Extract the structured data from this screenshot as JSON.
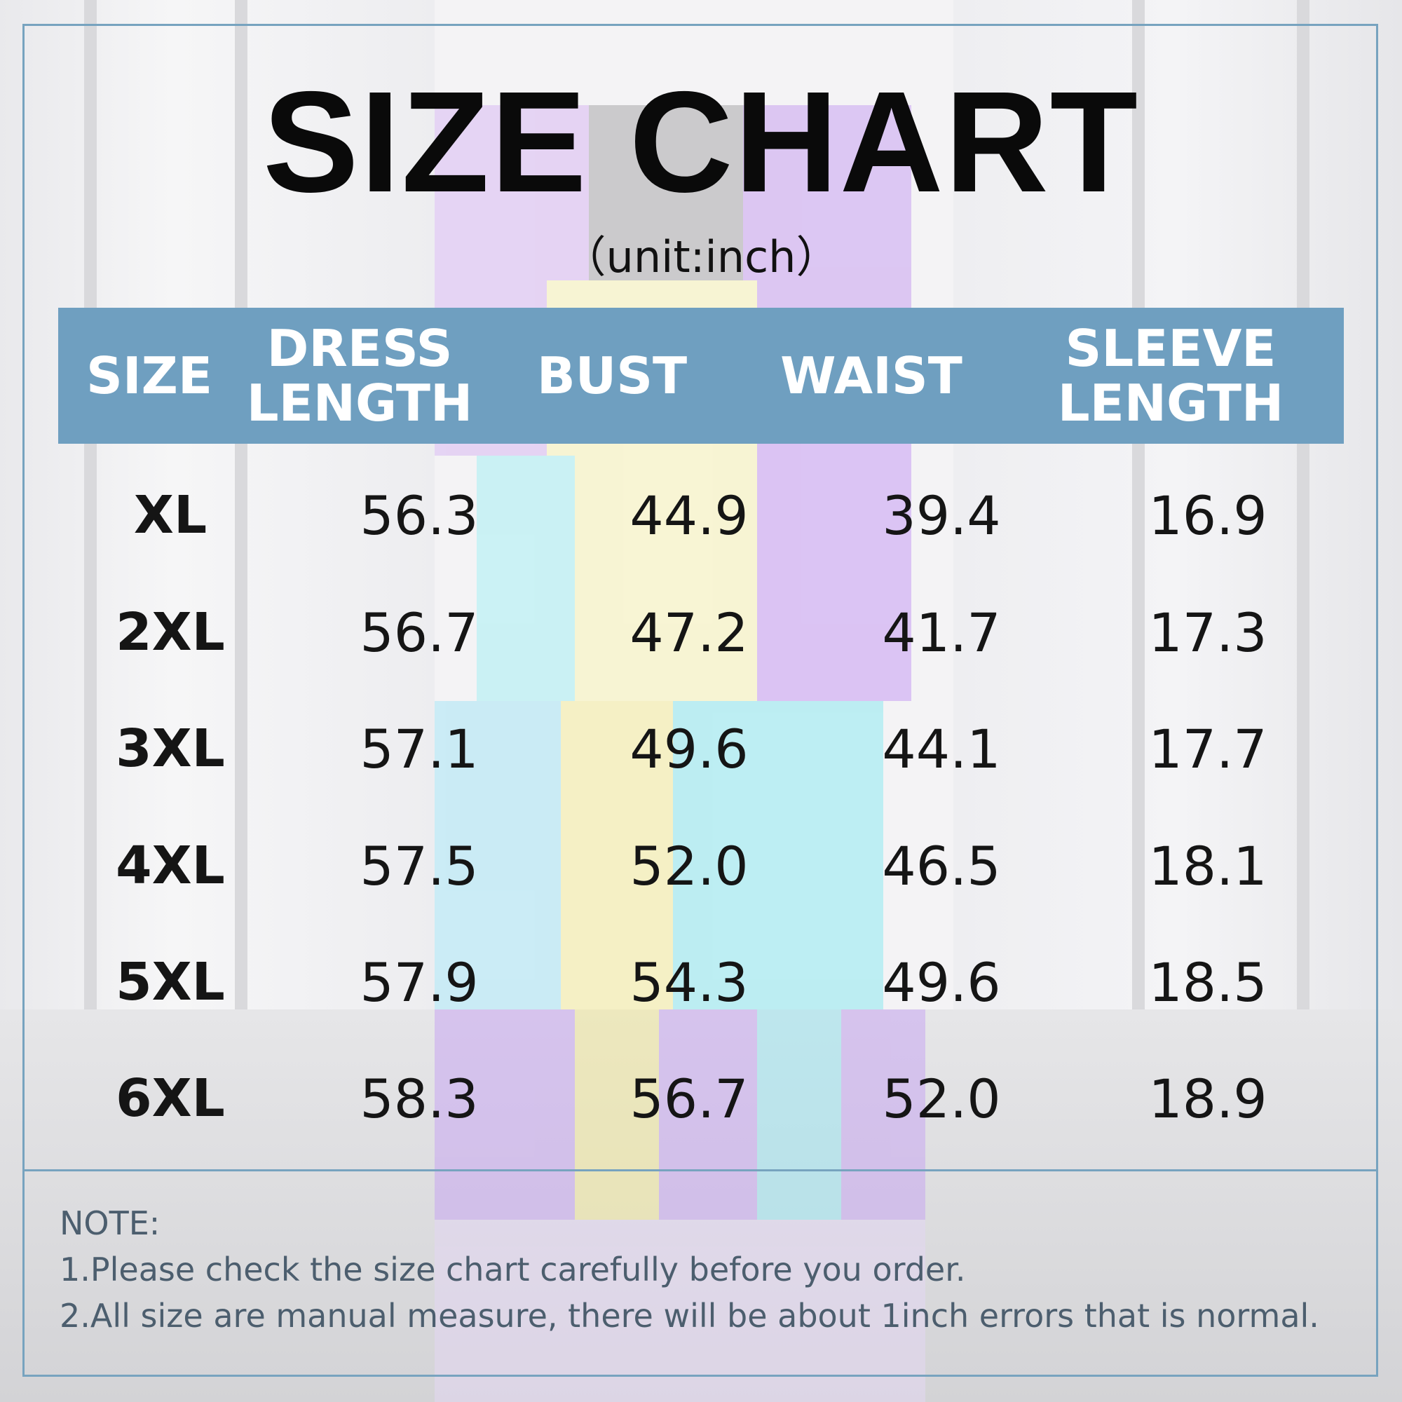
{
  "title": "SIZE CHART",
  "unit": "（unit:inch）",
  "columns": [
    "SIZE",
    "DRESS\nLENGTH",
    "BUST",
    "WAIST",
    "SLEEVE\nLENGTH"
  ],
  "rows": [
    [
      "XL",
      "56.3",
      "44.9",
      "39.4",
      "16.9"
    ],
    [
      "2XL",
      "56.7",
      "47.2",
      "41.7",
      "17.3"
    ],
    [
      "3XL",
      "57.1",
      "49.6",
      "44.1",
      "17.7"
    ],
    [
      "4XL",
      "57.5",
      "52.0",
      "46.5",
      "18.1"
    ],
    [
      "5XL",
      "57.9",
      "54.3",
      "49.6",
      "18.5"
    ],
    [
      "6XL",
      "58.3",
      "56.7",
      "52.0",
      "18.9"
    ]
  ],
  "notes": {
    "heading": "NOTE:",
    "line1": "1.Please check the size chart carefully before you order.",
    "line2": "2.All size are manual measure, there will be about 1inch errors that is normal."
  },
  "colors": {
    "accent": "#6f9fc0",
    "frame": "#77a3bf",
    "note_text": "#4c5e6e"
  }
}
